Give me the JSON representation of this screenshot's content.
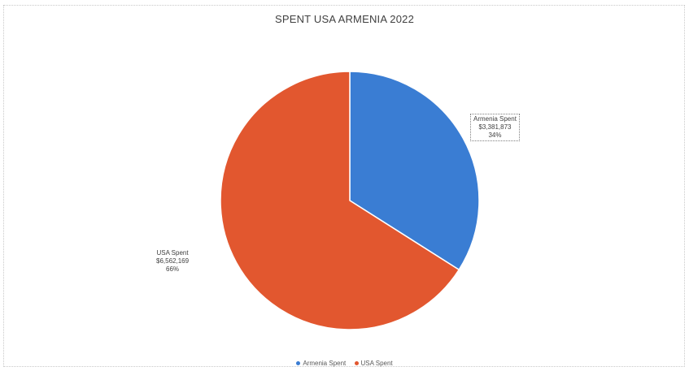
{
  "chart_data": {
    "type": "pie",
    "title": "SPENT USA  ARMENIA 2022",
    "categories": [
      "Armenia Spent",
      "USA Spent"
    ],
    "values": [
      3381873,
      6562169
    ],
    "value_labels": [
      "$3,381,873",
      "$6,562,169"
    ],
    "percent_labels": [
      "34%",
      "66%"
    ],
    "colors": [
      "#3a7dd3",
      "#e2572f"
    ],
    "legend_position": "bottom",
    "start_angle": "12 o'clock, clockwise"
  }
}
